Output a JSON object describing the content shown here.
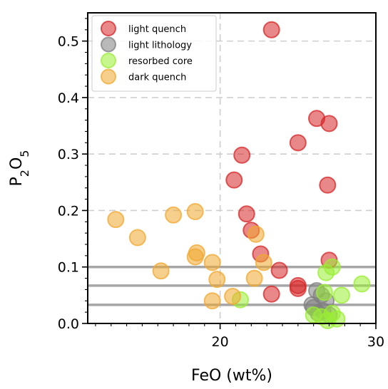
{
  "chart_data": {
    "type": "scatter",
    "xlabel": "FeO (wt%)",
    "ylabel": "P2O5",
    "xlim": [
      11.5,
      30
    ],
    "ylim": [
      0,
      0.55
    ],
    "xticks": [
      {
        "value": 20,
        "label": "20"
      },
      {
        "value": 30,
        "label": "30"
      }
    ],
    "yticks": [
      {
        "value": 0.0,
        "label": "0.0"
      },
      {
        "value": 0.1,
        "label": "0.1"
      },
      {
        "value": 0.2,
        "label": "0.2"
      },
      {
        "value": 0.3,
        "label": "0.3"
      },
      {
        "value": 0.4,
        "label": "0.4"
      },
      {
        "value": 0.5,
        "label": "0.5"
      }
    ],
    "grid": true,
    "legend_position": "top-left",
    "reference_lines_y": [
      0.1,
      0.067,
      0.033
    ],
    "series": [
      {
        "name": "light quench",
        "color": "#d62728",
        "points": [
          [
            23.3,
            0.52
          ],
          [
            26.2,
            0.363
          ],
          [
            27.0,
            0.354
          ],
          [
            25.0,
            0.32
          ],
          [
            21.4,
            0.298
          ],
          [
            20.9,
            0.254
          ],
          [
            26.9,
            0.245
          ],
          [
            21.7,
            0.194
          ],
          [
            22.0,
            0.165
          ],
          [
            22.6,
            0.123
          ],
          [
            27.0,
            0.112
          ],
          [
            23.8,
            0.094
          ],
          [
            25.0,
            0.067
          ],
          [
            25.0,
            0.062
          ],
          [
            23.3,
            0.052
          ]
        ]
      },
      {
        "name": "light lithology",
        "color": "#7f7f7f",
        "points": [
          [
            26.2,
            0.058
          ],
          [
            26.5,
            0.05
          ],
          [
            26.8,
            0.04
          ],
          [
            25.9,
            0.033
          ],
          [
            26.0,
            0.028
          ],
          [
            26.6,
            0.022
          ],
          [
            26.3,
            0.018
          ],
          [
            27.0,
            0.015
          ]
        ]
      },
      {
        "name": "resorbed core",
        "color": "#99ee33",
        "points": [
          [
            27.2,
            0.1
          ],
          [
            26.8,
            0.09
          ],
          [
            29.1,
            0.07
          ],
          [
            27.8,
            0.05
          ],
          [
            26.7,
            0.055
          ],
          [
            21.3,
            0.042
          ],
          [
            26.0,
            0.015
          ],
          [
            26.5,
            0.012
          ],
          [
            27.2,
            0.018
          ],
          [
            27.5,
            0.008
          ],
          [
            26.9,
            0.005
          ]
        ]
      },
      {
        "name": "dark quench",
        "color": "#f0a830",
        "points": [
          [
            13.3,
            0.184
          ],
          [
            14.7,
            0.152
          ],
          [
            17.0,
            0.192
          ],
          [
            18.4,
            0.198
          ],
          [
            22.3,
            0.158
          ],
          [
            18.5,
            0.125
          ],
          [
            18.4,
            0.118
          ],
          [
            19.5,
            0.108
          ],
          [
            16.2,
            0.093
          ],
          [
            22.8,
            0.108
          ],
          [
            19.8,
            0.078
          ],
          [
            22.2,
            0.08
          ],
          [
            20.8,
            0.048
          ],
          [
            19.5,
            0.04
          ]
        ]
      }
    ]
  }
}
